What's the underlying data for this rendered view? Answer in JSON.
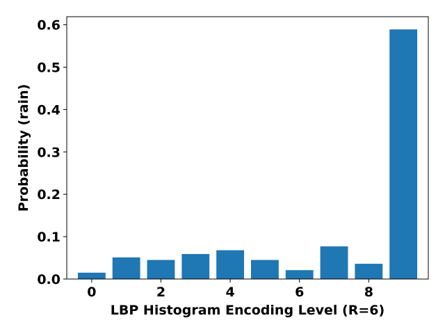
{
  "chart_data": {
    "type": "bar",
    "title": "",
    "xlabel": "LBP Histogram Encoding Level (R=6)",
    "ylabel": "Probability (rain)",
    "x": [
      0,
      1,
      2,
      3,
      4,
      5,
      6,
      7,
      8,
      9
    ],
    "values": [
      0.015,
      0.051,
      0.045,
      0.059,
      0.068,
      0.045,
      0.021,
      0.077,
      0.036,
      0.589
    ],
    "bar_color": "#1f77b4",
    "xlim": [
      -0.72,
      9.72
    ],
    "ylim": [
      0.0,
      0.619
    ],
    "xticks": [
      0,
      2,
      4,
      6,
      8
    ],
    "xtick_labels": [
      "0",
      "2",
      "4",
      "6",
      "8"
    ],
    "yticks": [
      0.0,
      0.1,
      0.2,
      0.3,
      0.4,
      0.5,
      0.6
    ],
    "ytick_labels": [
      "0.0",
      "0.1",
      "0.2",
      "0.3",
      "0.4",
      "0.5",
      "0.6"
    ],
    "grid": false,
    "legend": "none"
  }
}
